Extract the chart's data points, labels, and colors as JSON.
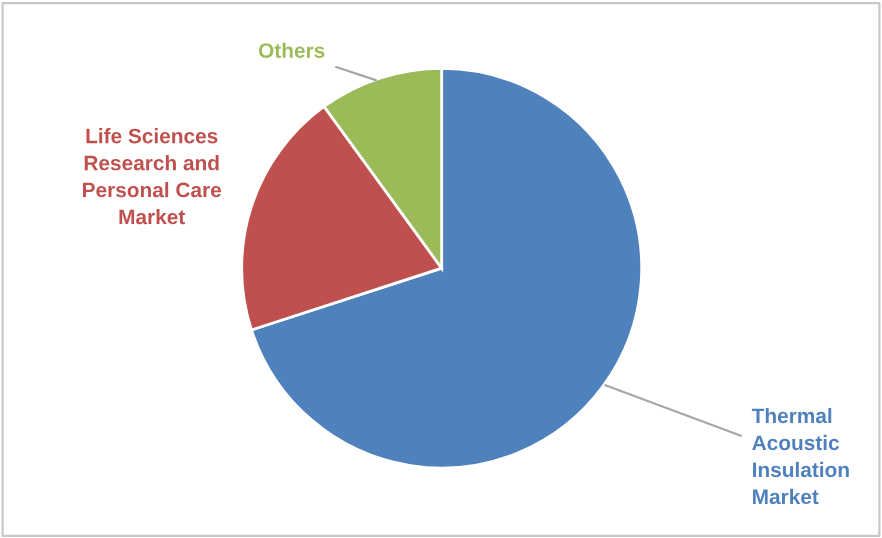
{
  "chart_data": {
    "type": "pie",
    "categories": [
      "Thermal\nAcoustic\nInsulation\nMarket",
      "Life Sciences\nResearch and\nPersonal Care\nMarket",
      "Others"
    ],
    "values": [
      70,
      20,
      10
    ],
    "colors": [
      "#4f81bd",
      "#c0504d",
      "#9bbb59"
    ],
    "legend": false
  }
}
